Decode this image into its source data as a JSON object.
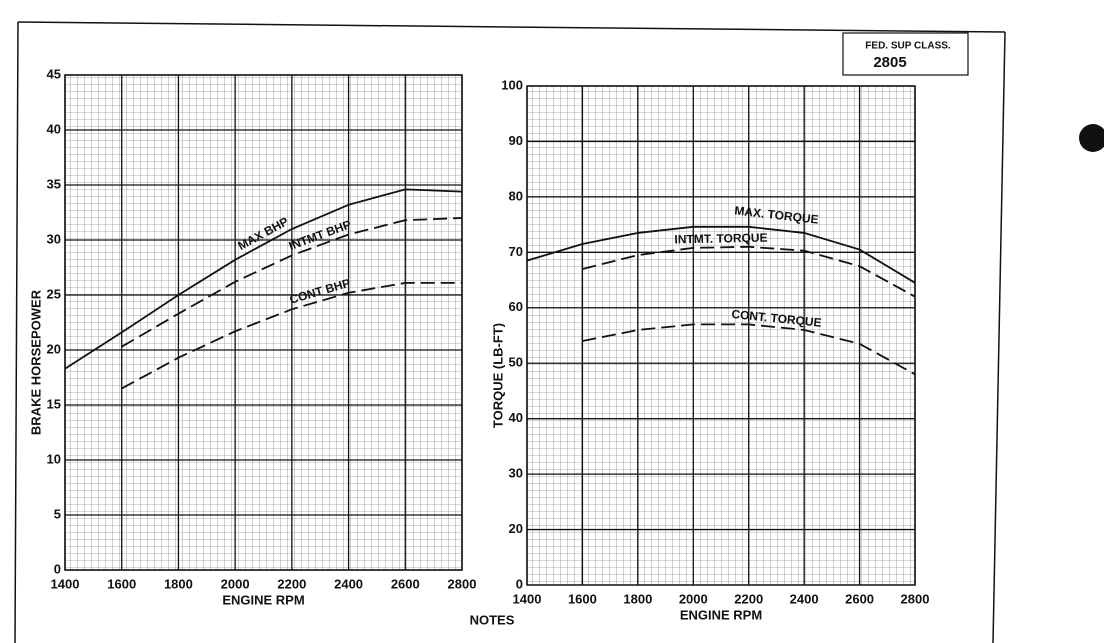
{
  "header": {
    "class_label": "FED. SUP CLASS.",
    "class_number": "2805"
  },
  "notes": "NOTES",
  "chart_data": [
    {
      "type": "line",
      "xlabel": "ENGINE RPM",
      "ylabel": "BRAKE HORSEPOWER",
      "x": [
        1400,
        1600,
        1800,
        2000,
        2200,
        2400,
        2600,
        2800
      ],
      "xlim": [
        1400,
        2800
      ],
      "xticks": [
        1400,
        1600,
        1800,
        2000,
        2200,
        2400,
        2600,
        2800
      ],
      "ylim": [
        0,
        45
      ],
      "yticks": [
        0,
        5,
        10,
        15,
        20,
        25,
        30,
        35,
        40,
        45
      ],
      "grid": true,
      "series": [
        {
          "name": "MAX BHP",
          "color": "#111111",
          "style": "solid",
          "values": [
            18.3,
            21.6,
            25,
            28.2,
            31,
            33.2,
            34.6,
            34.4
          ]
        },
        {
          "name": "INTMT BHP",
          "color": "#111111",
          "style": "dashed",
          "values": [
            null,
            20.3,
            23.3,
            26.2,
            28.6,
            30.5,
            31.8,
            32
          ]
        },
        {
          "name": "CONT BHP",
          "color": "#111111",
          "style": "dashed",
          "values": [
            null,
            16.5,
            19.3,
            21.7,
            23.7,
            25.2,
            26.1,
            26.1
          ]
        }
      ]
    },
    {
      "type": "line",
      "xlabel": "ENGINE RPM",
      "ylabel": "TORQUE (LB-FT)",
      "x": [
        1400,
        1600,
        1800,
        2000,
        2200,
        2400,
        2600,
        2800
      ],
      "xlim": [
        1400,
        2800
      ],
      "xticks": [
        1400,
        1600,
        1800,
        2000,
        2200,
        2400,
        2600,
        2800
      ],
      "ylim": [
        10,
        100
      ],
      "yticks": [
        20,
        30,
        40,
        50,
        60,
        70,
        80,
        90,
        100
      ],
      "y_origin_label": "0",
      "grid": true,
      "series": [
        {
          "name": "MAX. TORQUE",
          "color": "#111111",
          "style": "solid",
          "values": [
            68.5,
            71.5,
            73.5,
            74.6,
            74.6,
            73.5,
            70.5,
            64.5
          ]
        },
        {
          "name": "INTMT. TORQUE",
          "color": "#111111",
          "style": "dashed",
          "values": [
            null,
            67,
            69.5,
            70.8,
            71,
            70.3,
            67.5,
            62
          ]
        },
        {
          "name": "CONT. TORQUE",
          "color": "#111111",
          "style": "dashed",
          "values": [
            null,
            54,
            56,
            57,
            57,
            56,
            53.5,
            48
          ]
        }
      ]
    }
  ]
}
